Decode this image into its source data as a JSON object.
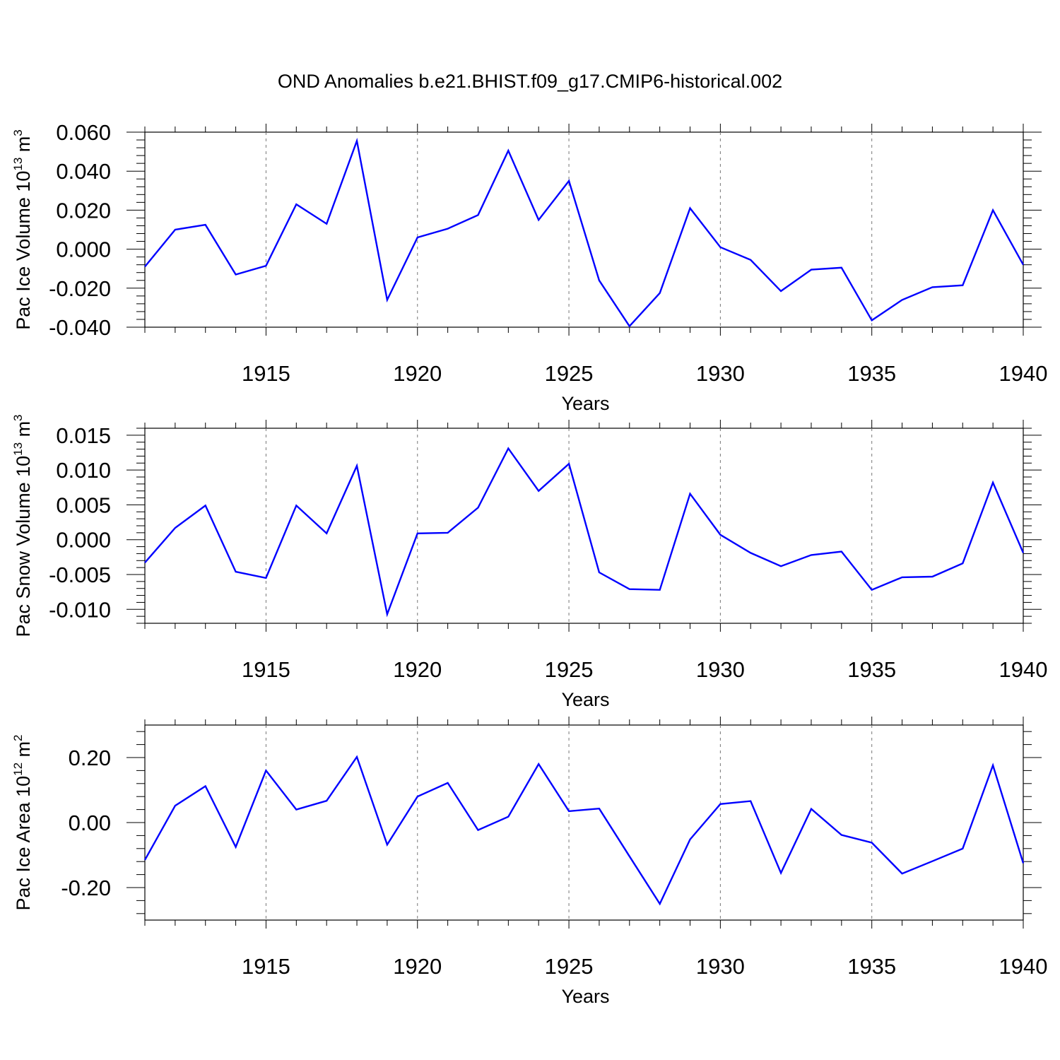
{
  "title": "OND Anomalies b.e21.BHIST.f09_g17.CMIP6-historical.002",
  "line_color": "#0000ff",
  "chart_data": [
    {
      "type": "line",
      "ylabel_prefix": "Pac Ice Volume 10",
      "ylabel_exp": "13",
      "ylabel_unit": " m",
      "ylabel_unit_exp": "3",
      "xlabel": "Years",
      "xlim": [
        1911,
        1940
      ],
      "ylim": [
        -0.04,
        0.06
      ],
      "yticks": [
        -0.04,
        -0.02,
        0.0,
        0.02,
        0.04,
        0.06
      ],
      "ytick_labels": [
        "-0.040",
        "-0.020",
        "0.000",
        "0.020",
        "0.040",
        "0.060"
      ],
      "xticks": [
        1915,
        1920,
        1925,
        1930,
        1935,
        1940
      ],
      "xtick_labels": [
        "1915",
        "1920",
        "1925",
        "1930",
        "1935",
        "1940"
      ],
      "x": [
        1911,
        1912,
        1913,
        1914,
        1915,
        1916,
        1917,
        1918,
        1919,
        1920,
        1921,
        1922,
        1923,
        1924,
        1925,
        1926,
        1927,
        1928,
        1929,
        1930,
        1931,
        1932,
        1933,
        1934,
        1935,
        1936,
        1937,
        1938,
        1939,
        1940
      ],
      "y": [
        -0.009,
        0.01,
        0.0125,
        -0.013,
        -0.0085,
        0.023,
        0.013,
        0.0555,
        -0.026,
        0.006,
        0.0105,
        0.0175,
        0.0505,
        0.015,
        0.035,
        -0.016,
        -0.0395,
        -0.0225,
        0.021,
        0.001,
        -0.0055,
        -0.0215,
        -0.0105,
        -0.0095,
        -0.0365,
        -0.026,
        -0.0195,
        -0.0185,
        0.02,
        -0.008
      ]
    },
    {
      "type": "line",
      "ylabel_prefix": "Pac Snow Volume 10",
      "ylabel_exp": "13",
      "ylabel_unit": " m",
      "ylabel_unit_exp": "3",
      "xlabel": "Years",
      "xlim": [
        1911,
        1940
      ],
      "ylim": [
        -0.012,
        0.016
      ],
      "yticks": [
        -0.01,
        -0.005,
        0.0,
        0.005,
        0.01,
        0.015
      ],
      "ytick_labels": [
        "-0.010",
        "-0.005",
        "0.000",
        "0.005",
        "0.010",
        "0.015"
      ],
      "xticks": [
        1915,
        1920,
        1925,
        1930,
        1935,
        1940
      ],
      "xtick_labels": [
        "1915",
        "1920",
        "1925",
        "1930",
        "1935",
        "1940"
      ],
      "x": [
        1911,
        1912,
        1913,
        1914,
        1915,
        1916,
        1917,
        1918,
        1919,
        1920,
        1921,
        1922,
        1923,
        1924,
        1925,
        1926,
        1927,
        1928,
        1929,
        1930,
        1931,
        1932,
        1933,
        1934,
        1935,
        1936,
        1937,
        1938,
        1939,
        1940
      ],
      "y": [
        -0.0033,
        0.0017,
        0.0049,
        -0.0046,
        -0.0055,
        0.0049,
        0.0009,
        0.0106,
        -0.0107,
        0.0009,
        0.001,
        0.0046,
        0.0131,
        0.007,
        0.0109,
        -0.0047,
        -0.0071,
        -0.0072,
        0.0066,
        0.0007,
        -0.0019,
        -0.0038,
        -0.0022,
        -0.0017,
        -0.0072,
        -0.0054,
        -0.0053,
        -0.0034,
        0.0082,
        -0.0019
      ]
    },
    {
      "type": "line",
      "ylabel_prefix": "Pac Ice Area 10",
      "ylabel_exp": "12",
      "ylabel_unit": " m",
      "ylabel_unit_exp": "2",
      "xlabel": "Years",
      "xlim": [
        1911,
        1940
      ],
      "ylim": [
        -0.3,
        0.3
      ],
      "yticks": [
        -0.2,
        0.0,
        0.2
      ],
      "ytick_labels": [
        "-0.20",
        "0.00",
        "0.20"
      ],
      "xticks": [
        1915,
        1920,
        1925,
        1930,
        1935,
        1940
      ],
      "xtick_labels": [
        "1915",
        "1920",
        "1925",
        "1930",
        "1935",
        "1940"
      ],
      "x": [
        1911,
        1912,
        1913,
        1914,
        1915,
        1916,
        1917,
        1918,
        1919,
        1920,
        1921,
        1922,
        1923,
        1924,
        1925,
        1926,
        1927,
        1928,
        1929,
        1930,
        1931,
        1932,
        1933,
        1934,
        1935,
        1936,
        1937,
        1938,
        1939,
        1940
      ],
      "y": [
        -0.115,
        0.052,
        0.112,
        -0.075,
        0.16,
        0.04,
        0.067,
        0.202,
        -0.068,
        0.08,
        0.122,
        -0.023,
        0.018,
        0.18,
        0.035,
        0.043,
        -0.104,
        -0.25,
        -0.052,
        0.057,
        0.066,
        -0.155,
        0.042,
        -0.038,
        -0.062,
        -0.157,
        -0.119,
        -0.08,
        0.176,
        -0.125
      ]
    }
  ]
}
